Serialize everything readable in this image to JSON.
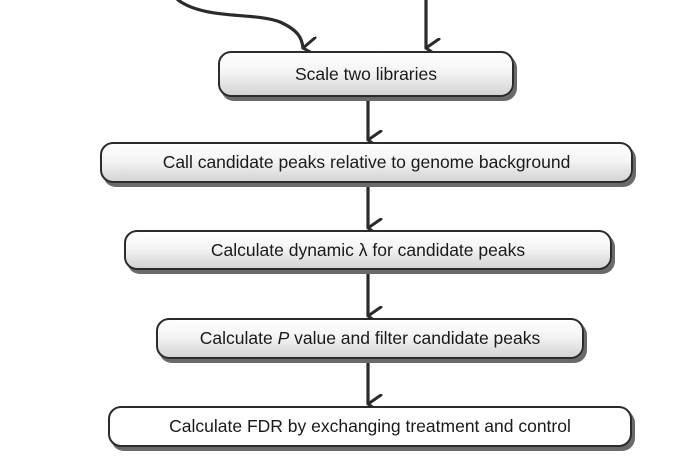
{
  "steps": [
    {
      "id": "scale",
      "label": "Scale two libraries"
    },
    {
      "id": "call",
      "label": "Call candidate peaks relative to genome background"
    },
    {
      "id": "dynamic",
      "label": "Calculate dynamic λ for candidate peaks"
    },
    {
      "id": "pvalue",
      "label_pre": "Calculate ",
      "label_italic": "P",
      "label_post": " value and filter candidate peaks"
    },
    {
      "id": "fdr",
      "label": "Calculate FDR by exchanging treatment and control"
    }
  ],
  "colors": {
    "stroke": "#2b2b2b",
    "shadow": "#6a6a6a",
    "text": "#1a1a1a"
  }
}
